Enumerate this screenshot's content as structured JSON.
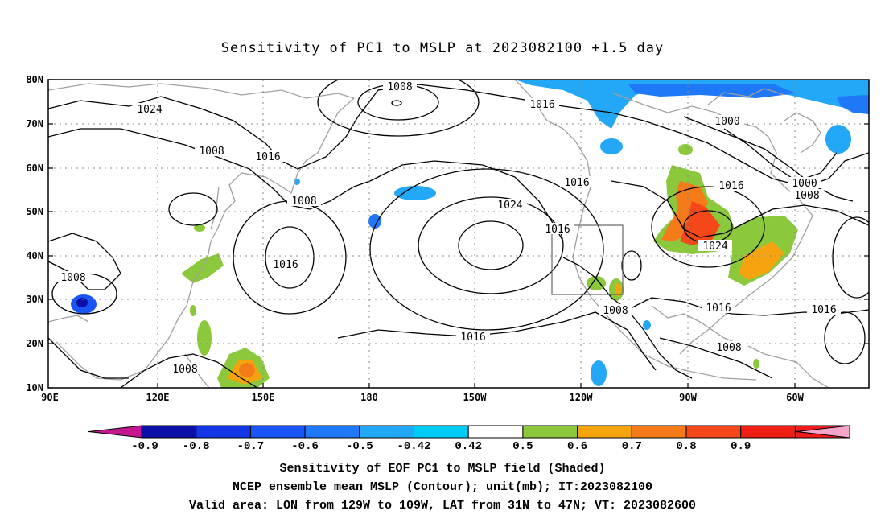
{
  "title": "Sensitivity of PC1 to MSLP at 2023082100 +1.5 day",
  "map": {
    "lat_labels": [
      "80N",
      "70N",
      "60N",
      "50N",
      "40N",
      "30N",
      "20N",
      "10N"
    ],
    "lon_labels": [
      "90E",
      "120E",
      "150E",
      "180",
      "150W",
      "120W",
      "90W",
      "60W"
    ],
    "contour_labels": [
      {
        "text": "1008",
        "at": "north pacific high latitude"
      },
      {
        "text": "1024",
        "at": "siberia"
      },
      {
        "text": "1008",
        "at": "central asia"
      },
      {
        "text": "1016",
        "at": "kamchatka"
      },
      {
        "text": "1008",
        "at": "sea of okhotsk"
      },
      {
        "text": "1016",
        "at": "alaska"
      },
      {
        "text": "1000",
        "at": "hudson bay"
      },
      {
        "text": "1000",
        "at": "labrador"
      },
      {
        "text": "1008",
        "at": "labrador"
      },
      {
        "text": "1016",
        "at": "canada"
      },
      {
        "text": "1024",
        "at": "north pacific high"
      },
      {
        "text": "1016",
        "at": "west coast"
      },
      {
        "text": "1016",
        "at": "west pacific"
      },
      {
        "text": "1016",
        "at": "baja"
      },
      {
        "text": "1024",
        "at": "great lakes"
      },
      {
        "text": "1008",
        "at": "bay of bengal"
      },
      {
        "text": "1008",
        "at": "mexico"
      },
      {
        "text": "1016",
        "at": "gulf of mexico"
      },
      {
        "text": "1016",
        "at": "atlantic"
      },
      {
        "text": "1016",
        "at": "tropical pacific"
      },
      {
        "text": "1008",
        "at": "caribbean"
      },
      {
        "text": "1008",
        "at": "south china sea"
      }
    ]
  },
  "colorbar": {
    "colors": [
      "#c4168f",
      "#0d10a8",
      "#1336e6",
      "#1955f5",
      "#1f78f7",
      "#22a8f7",
      "#00ccf8",
      "#ffffff",
      "#8cc83b",
      "#f5a30f",
      "#f57a19",
      "#f5481a",
      "#f01f14",
      "#f51a1a",
      "#f6a5c8"
    ],
    "labels": [
      "-0.9",
      "-0.8",
      "-0.7",
      "-0.6",
      "-0.5",
      "-0.42",
      "0.42",
      "0.5",
      "0.6",
      "0.7",
      "0.8",
      "0.9"
    ]
  },
  "footer": {
    "line1": "Sensitivity of EOF PC1 to MSLP field (Shaded)",
    "line2": "NCEP ensemble mean MSLP (Contour); unit(mb); IT:2023082100",
    "line3": "Valid area: LON from 129W to 109W, LAT from 31N to 47N; VT: 2023082600"
  }
}
